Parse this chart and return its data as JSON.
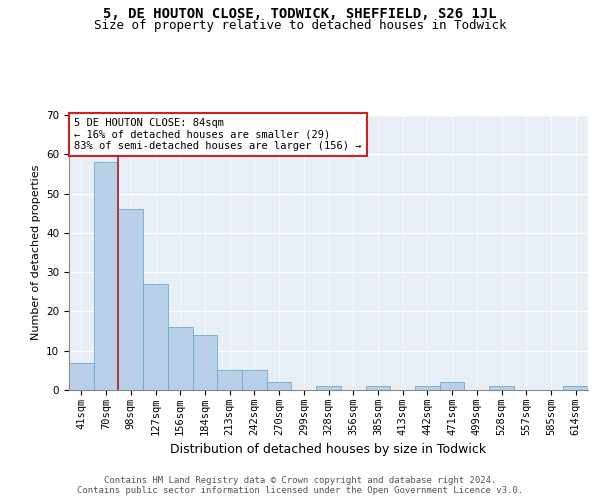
{
  "title": "5, DE HOUTON CLOSE, TODWICK, SHEFFIELD, S26 1JL",
  "subtitle": "Size of property relative to detached houses in Todwick",
  "xlabel": "Distribution of detached houses by size in Todwick",
  "ylabel": "Number of detached properties",
  "categories": [
    "41sqm",
    "70sqm",
    "98sqm",
    "127sqm",
    "156sqm",
    "184sqm",
    "213sqm",
    "242sqm",
    "270sqm",
    "299sqm",
    "328sqm",
    "356sqm",
    "385sqm",
    "413sqm",
    "442sqm",
    "471sqm",
    "499sqm",
    "528sqm",
    "557sqm",
    "585sqm",
    "614sqm"
  ],
  "values": [
    7,
    58,
    46,
    27,
    16,
    14,
    5,
    5,
    2,
    0,
    1,
    0,
    1,
    0,
    1,
    2,
    0,
    1,
    0,
    0,
    1
  ],
  "bar_color": "#b8d0e8",
  "bar_edge_color": "#6aaad4",
  "vline_x": 1.5,
  "vline_color": "#aa2222",
  "annotation_text": "5 DE HOUTON CLOSE: 84sqm\n← 16% of detached houses are smaller (29)\n83% of semi-detached houses are larger (156) →",
  "annotation_box_color": "white",
  "annotation_box_edge": "#cc2222",
  "ylim": [
    0,
    70
  ],
  "yticks": [
    0,
    10,
    20,
    30,
    40,
    50,
    60,
    70
  ],
  "background_color": "#e8eef6",
  "footer": "Contains HM Land Registry data © Crown copyright and database right 2024.\nContains public sector information licensed under the Open Government Licence v3.0.",
  "title_fontsize": 10,
  "subtitle_fontsize": 9,
  "xlabel_fontsize": 9,
  "ylabel_fontsize": 8,
  "tick_fontsize": 7.5,
  "footer_fontsize": 6.5,
  "ann_fontsize": 7.5
}
